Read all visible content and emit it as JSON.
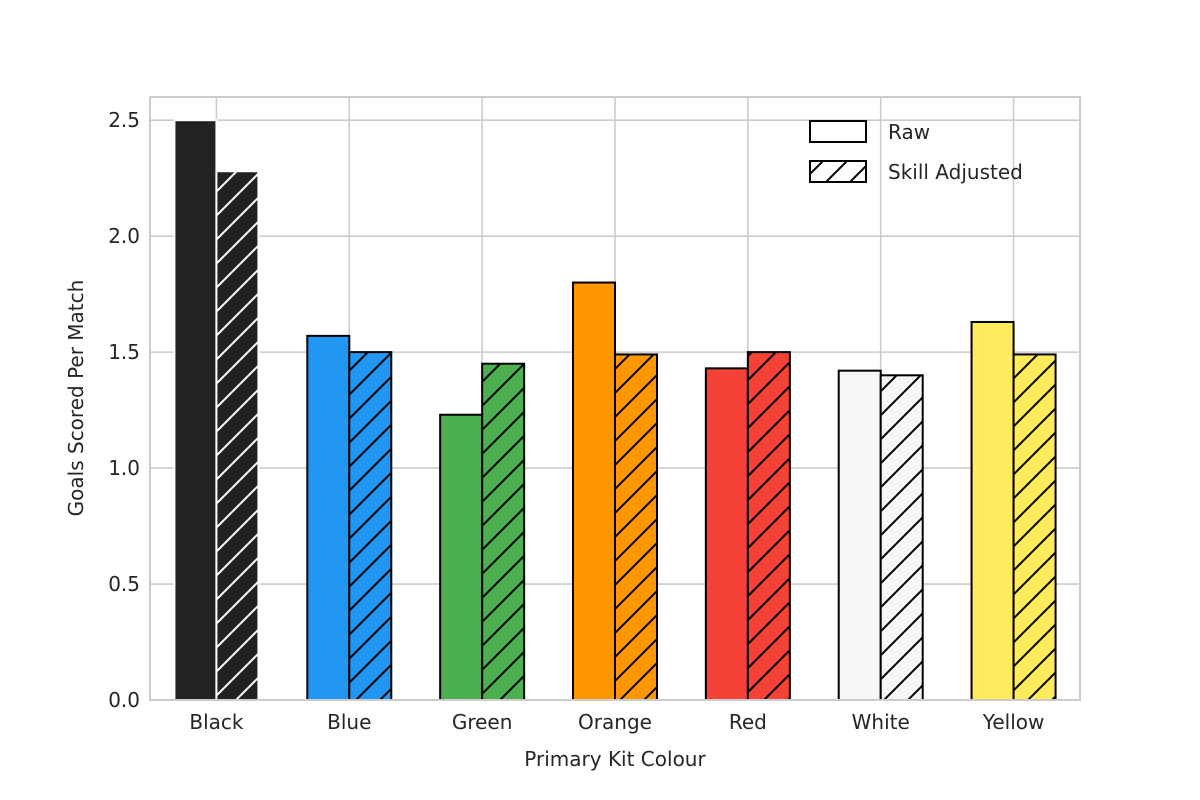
{
  "chart_data": {
    "type": "bar",
    "xlabel": "Primary Kit Colour",
    "ylabel": "Goals Scored Per Match",
    "ylim": [
      0,
      2.6
    ],
    "yticks": [
      "0.0",
      "0.5",
      "1.0",
      "1.5",
      "2.0",
      "2.5"
    ],
    "categories": [
      "Black",
      "Blue",
      "Green",
      "Orange",
      "Red",
      "White",
      "Yellow"
    ],
    "category_colors": [
      "#222222",
      "#2196f3",
      "#4caf50",
      "#ff9800",
      "#f44336",
      "#f5f7f5",
      "#ffeb5b"
    ],
    "series": [
      {
        "name": "Raw",
        "hatched": false,
        "values": [
          2.5,
          1.57,
          1.23,
          1.8,
          1.43,
          1.42,
          1.63
        ]
      },
      {
        "name": "Skill Adjusted",
        "hatched": true,
        "values": [
          2.28,
          1.5,
          1.45,
          1.49,
          1.5,
          1.4,
          1.49
        ]
      }
    ],
    "grid": true,
    "legend_position": "top-right"
  }
}
